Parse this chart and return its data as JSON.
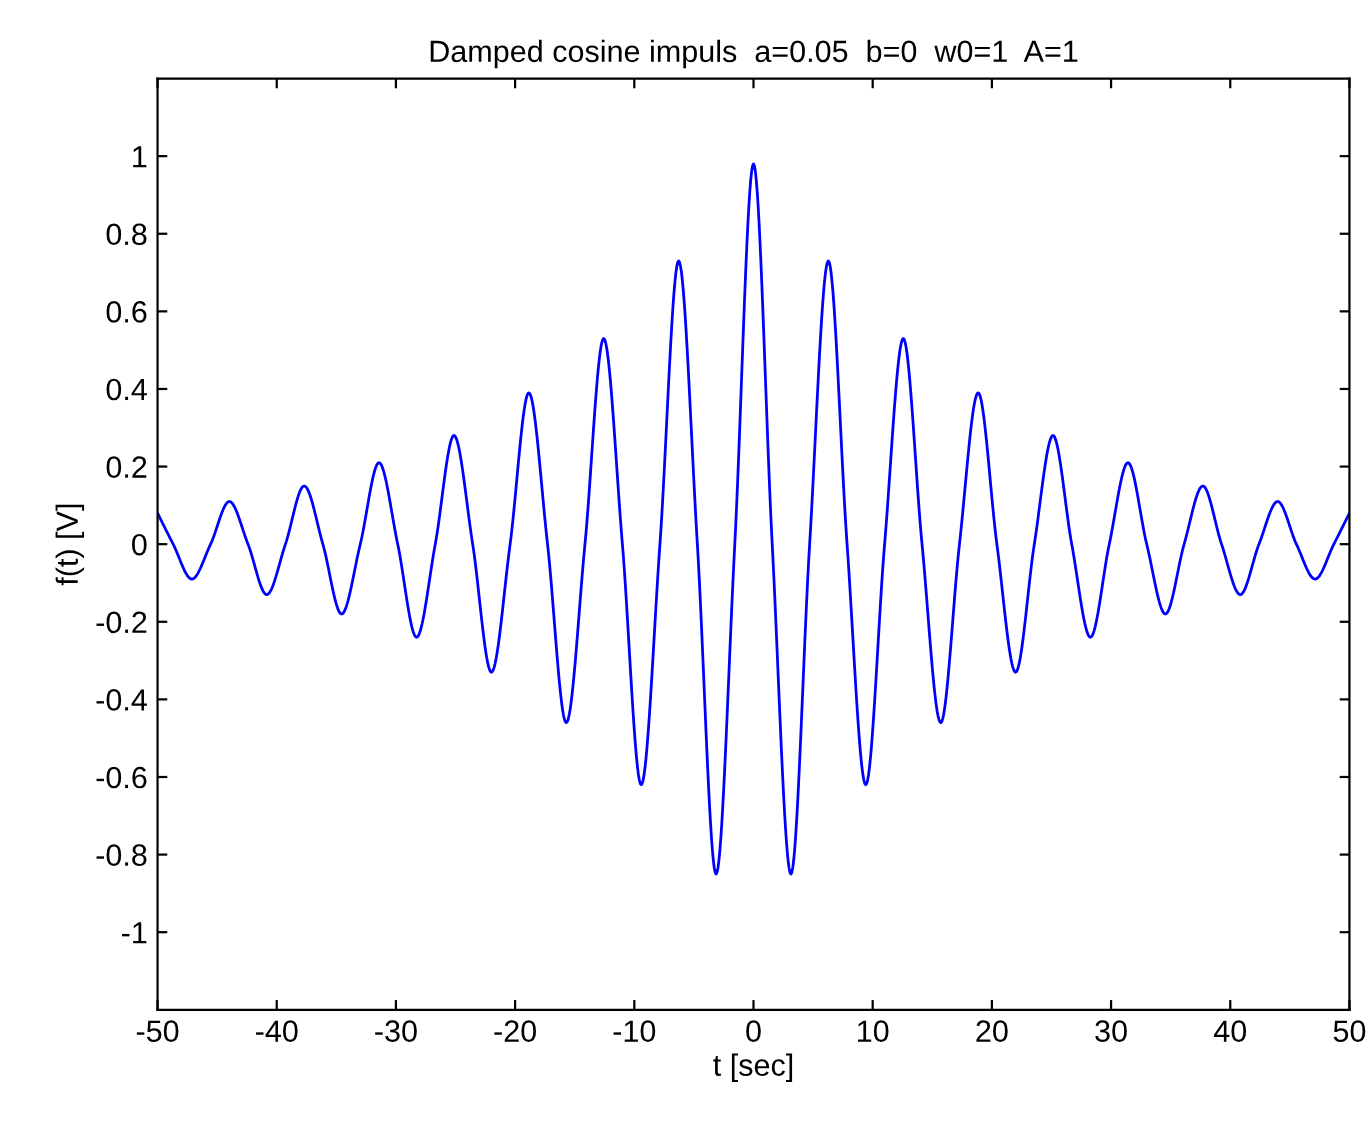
{
  "chart_data": {
    "type": "line",
    "title": "Damped cosine impuls  a=0.05  b=0  w0=1  A=1",
    "xlabel": "t [sec]",
    "ylabel": "f(t) [V]",
    "x": [
      -50,
      -48.69,
      -47.12,
      -45.55,
      -43.98,
      -42.41,
      -40.84,
      -39.27,
      -37.7,
      -36.13,
      -34.56,
      -32.99,
      -31.42,
      -29.85,
      -28.27,
      -26.7,
      -25.13,
      -23.56,
      -21.99,
      -20.42,
      -18.85,
      -17.28,
      -15.71,
      -14.14,
      -12.57,
      -11.0,
      -9.42,
      -7.85,
      -6.28,
      -4.71,
      -3.14,
      -1.57,
      0,
      1.57,
      3.14,
      4.71,
      6.28,
      7.85,
      9.42,
      11.0,
      12.57,
      14.14,
      15.71,
      17.28,
      18.85,
      20.42,
      21.99,
      23.56,
      25.13,
      26.7,
      28.27,
      29.85,
      31.42,
      32.99,
      34.56,
      36.13,
      37.7,
      39.27,
      40.84,
      42.41,
      43.98,
      45.55,
      47.12,
      48.69,
      50
    ],
    "series": [
      {
        "color": "#0000ff",
        "values": [
          0.08,
          0,
          -0.09,
          0,
          0.11,
          0,
          -0.13,
          0,
          0.15,
          0,
          -0.18,
          0,
          0.21,
          0,
          -0.24,
          0,
          0.28,
          0,
          -0.33,
          0,
          0.39,
          0,
          -0.46,
          0,
          0.53,
          0,
          -0.62,
          0,
          0.73,
          0,
          -0.85,
          0,
          0.98,
          0,
          -0.85,
          0,
          0.73,
          0,
          -0.62,
          0,
          0.53,
          0,
          -0.46,
          0,
          0.39,
          0,
          -0.33,
          0,
          0.28,
          0,
          -0.24,
          0,
          0.21,
          0,
          -0.18,
          0,
          0.15,
          0,
          -0.13,
          0,
          0.11,
          0,
          -0.09,
          0,
          0.08
        ]
      }
    ],
    "xlim": [
      -50,
      50
    ],
    "ylim": [
      -1.2,
      1.2
    ],
    "xticks": [
      -50,
      -40,
      -30,
      -20,
      -10,
      0,
      10,
      20,
      30,
      40,
      50
    ],
    "yticks": [
      -1,
      -0.8,
      -0.6,
      -0.4,
      -0.2,
      0,
      0.2,
      0.4,
      0.6,
      0.8,
      1
    ],
    "grid": false,
    "legend": false,
    "marker": "none",
    "line_style": "solid"
  }
}
